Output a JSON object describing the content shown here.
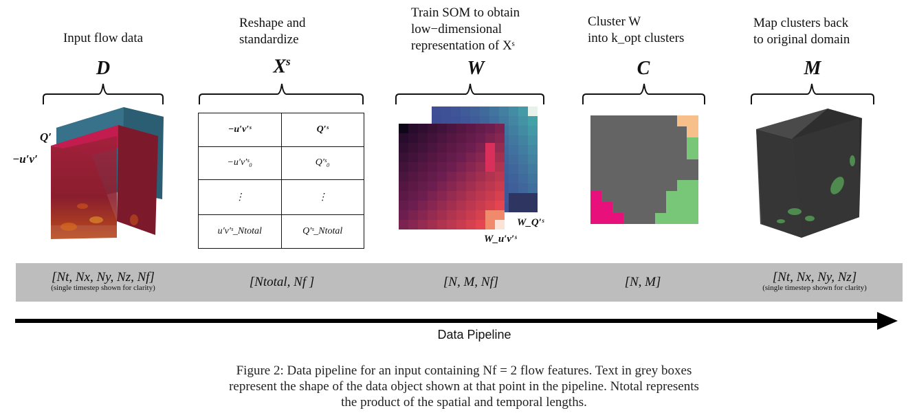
{
  "stages": [
    {
      "title_lines": [
        "Input flow data"
      ],
      "symbol": "D"
    },
    {
      "title_lines": [
        "Reshape and",
        "standardize"
      ],
      "symbol": "X",
      "symbol_sup": "s"
    },
    {
      "title_lines": [
        "Train SOM to obtain",
        "low−dimensional",
        "representation of Xˢ"
      ],
      "symbol": "W"
    },
    {
      "title_lines": [
        "Cluster W",
        "into k_opt clusters"
      ],
      "symbol": "C"
    },
    {
      "title_lines": [
        "Map clusters back",
        "to original domain"
      ],
      "symbol": "M"
    }
  ],
  "cube_labels": {
    "q_prime": "Q′",
    "uv": "−u′v′"
  },
  "table": {
    "rows": [
      [
        "−u′v′ˢ",
        "Q′ˢ"
      ],
      [
        "−u′v′ˢ₀",
        "Q′ˢ₀"
      ],
      [
        "⋮",
        "⋮"
      ],
      [
        "u′v′ˢ_Ntotal",
        "Q′ˢ_Ntotal"
      ]
    ]
  },
  "som_labels": {
    "wq": "W_Q′ˢ",
    "wuv": "W_u′v′ˢ"
  },
  "shapes": [
    {
      "text": "[Nt, Nx, Ny, Nz, Nf]",
      "note": "(single timestep shown for clarity)"
    },
    {
      "text": "[Ntotal, Nf ]",
      "note": ""
    },
    {
      "text": "[N, M, Nf]",
      "note": ""
    },
    {
      "text": "[N, M]",
      "note": ""
    },
    {
      "text": "[Nt, Nx, Ny, Nz]",
      "note": "(single timestep shown for clarity)"
    }
  ],
  "pipeline_label": "Data Pipeline",
  "caption_lines": [
    "Figure 2: Data pipeline for an input containing Nf = 2 flow features. Text in grey boxes",
    "represent the shape of the data object shown at that point in the pipeline. Ntotal represents",
    "the product of the spatial and temporal lengths."
  ]
}
